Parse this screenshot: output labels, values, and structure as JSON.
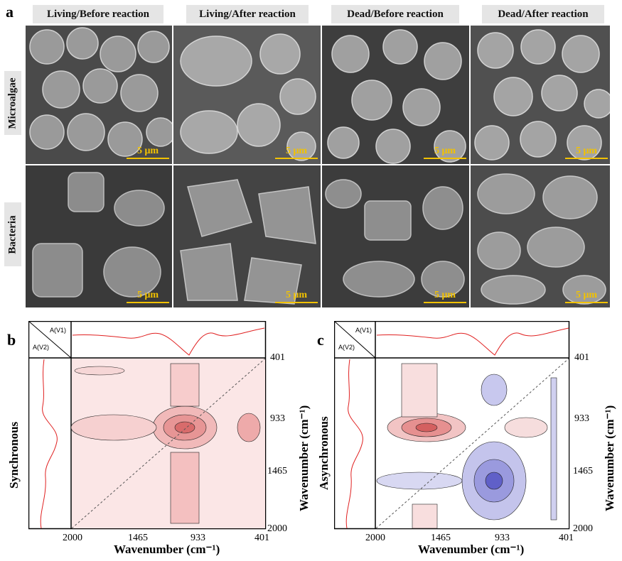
{
  "panel_a": {
    "letter": "a",
    "columns": [
      "Living/Before reaction",
      "Living/After reaction",
      "Dead/Before reaction",
      "Dead/After reaction"
    ],
    "rows": [
      "Microalgae",
      "Bacteria"
    ],
    "scale_label": "5 μm"
  },
  "panel_b": {
    "letter": "b",
    "corner_v1": "A(V1)",
    "corner_v2": "A(V2)",
    "side_label": "Synchronous",
    "x_label": "Wavenumber (cm⁻¹)",
    "y_label": "Wavenumber (cm⁻¹)",
    "x_ticks": [
      "2000",
      "1465",
      "933",
      "401"
    ],
    "y_ticks": [
      "401",
      "933",
      "1465",
      "2000"
    ]
  },
  "panel_c": {
    "letter": "c",
    "corner_v1": "A(V1)",
    "corner_v2": "A(V2)",
    "side_label": "Asynchronous",
    "x_label": "Wavenumber (cm⁻¹)",
    "y_label": "Wavenumber (cm⁻¹)",
    "x_ticks": [
      "2000",
      "1465",
      "933",
      "401"
    ],
    "y_ticks": [
      "401",
      "933",
      "1465",
      "2000"
    ]
  },
  "colors": {
    "positive": "#e8a0a0",
    "negative": "#8f8fd8",
    "spectrum": "#e02020",
    "scale": "#f2c200"
  }
}
